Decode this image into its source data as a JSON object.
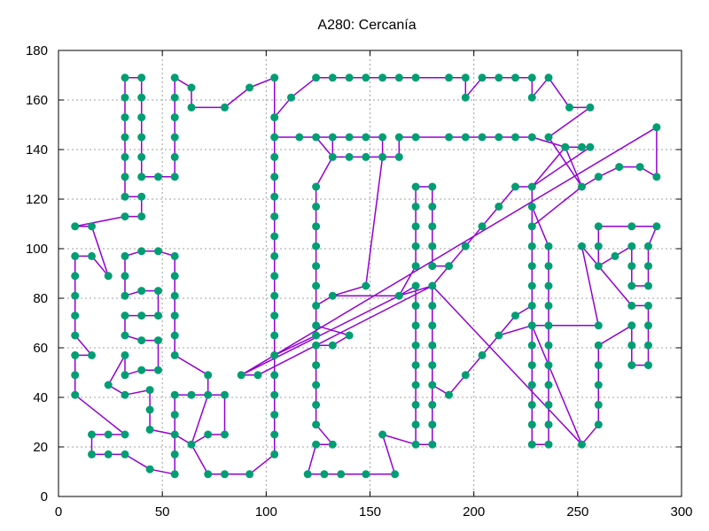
{
  "chart_data": {
    "type": "line",
    "title": "A280: Cercanía",
    "xlabel": "",
    "ylabel": "",
    "xlim": [
      0,
      300
    ],
    "ylim": [
      0,
      180
    ],
    "x_ticks": [
      0,
      50,
      100,
      150,
      200,
      250,
      300
    ],
    "y_ticks": [
      0,
      20,
      40,
      60,
      80,
      100,
      120,
      140,
      160,
      180
    ],
    "grid": true,
    "line_color": "#9400d3",
    "point_color": "#009e73",
    "series": [
      {
        "closed": true,
        "points": [
          [
            88,
            49
          ],
          [
            104,
            57
          ],
          [
            104,
            65
          ],
          [
            104,
            73
          ],
          [
            104,
            81
          ],
          [
            104,
            89
          ],
          [
            104,
            97
          ],
          [
            104,
            105
          ],
          [
            104,
            113
          ],
          [
            104,
            121
          ],
          [
            104,
            129
          ],
          [
            104,
            137
          ],
          [
            104,
            145
          ],
          [
            104,
            153
          ],
          [
            104,
            169
          ],
          [
            92,
            165
          ],
          [
            80,
            157
          ],
          [
            64,
            157
          ],
          [
            64,
            165
          ],
          [
            56,
            169
          ],
          [
            56,
            161
          ],
          [
            56,
            153
          ],
          [
            56,
            145
          ],
          [
            56,
            137
          ],
          [
            56,
            129
          ],
          [
            48,
            129
          ],
          [
            40,
            129
          ],
          [
            40,
            137
          ],
          [
            40,
            145
          ],
          [
            40,
            153
          ],
          [
            40,
            161
          ],
          [
            40,
            169
          ],
          [
            32,
            169
          ],
          [
            32,
            161
          ],
          [
            32,
            153
          ],
          [
            32,
            145
          ],
          [
            32,
            137
          ],
          [
            32,
            129
          ],
          [
            32,
            121
          ],
          [
            40,
            121
          ],
          [
            40,
            113
          ],
          [
            32,
            113
          ],
          [
            8,
            109
          ],
          [
            16,
            109
          ],
          [
            24,
            89
          ],
          [
            16,
            97
          ],
          [
            8,
            97
          ],
          [
            8,
            89
          ],
          [
            8,
            81
          ],
          [
            8,
            73
          ],
          [
            8,
            65
          ],
          [
            16,
            57
          ],
          [
            8,
            57
          ],
          [
            8,
            49
          ],
          [
            8,
            41
          ],
          [
            32,
            25
          ],
          [
            24,
            25
          ],
          [
            16,
            25
          ],
          [
            16,
            17
          ],
          [
            24,
            17
          ],
          [
            32,
            17
          ],
          [
            44,
            11
          ],
          [
            56,
            9
          ],
          [
            56,
            17
          ],
          [
            56,
            25
          ],
          [
            56,
            33
          ],
          [
            56,
            41
          ],
          [
            64,
            41
          ],
          [
            72,
            41
          ],
          [
            72,
            49
          ],
          [
            56,
            57
          ],
          [
            56,
            65
          ],
          [
            56,
            73
          ],
          [
            56,
            81
          ],
          [
            56,
            89
          ],
          [
            56,
            97
          ],
          [
            48,
            99
          ],
          [
            40,
            99
          ],
          [
            32,
            97
          ],
          [
            32,
            89
          ],
          [
            32,
            81
          ],
          [
            40,
            83
          ],
          [
            48,
            83
          ],
          [
            48,
            73
          ],
          [
            40,
            73
          ],
          [
            32,
            73
          ],
          [
            32,
            65
          ],
          [
            40,
            63
          ],
          [
            48,
            63
          ],
          [
            48,
            51
          ],
          [
            40,
            51
          ],
          [
            32,
            49
          ],
          [
            32,
            57
          ],
          [
            24,
            45
          ],
          [
            32,
            41
          ],
          [
            44,
            43
          ],
          [
            44,
            35
          ],
          [
            44,
            27
          ],
          [
            56,
            25
          ],
          [
            64,
            21
          ],
          [
            72,
            25
          ],
          [
            80,
            25
          ],
          [
            80,
            41
          ],
          [
            72,
            41
          ],
          [
            64,
            21
          ],
          [
            72,
            9
          ],
          [
            80,
            9
          ],
          [
            92,
            9
          ],
          [
            104,
            17
          ],
          [
            104,
            25
          ],
          [
            104,
            33
          ],
          [
            104,
            41
          ],
          [
            104,
            49
          ],
          [
            104,
            57
          ],
          [
            124,
            65
          ],
          [
            124,
            69
          ],
          [
            124,
            77
          ],
          [
            124,
            85
          ],
          [
            124,
            93
          ],
          [
            124,
            101
          ],
          [
            124,
            109
          ],
          [
            124,
            117
          ],
          [
            124,
            125
          ],
          [
            132,
            137
          ],
          [
            124,
            145
          ],
          [
            132,
            145
          ],
          [
            140,
            145
          ],
          [
            148,
            145
          ],
          [
            156,
            145
          ],
          [
            156,
            137
          ],
          [
            148,
            85
          ],
          [
            132,
            81
          ],
          [
            164,
            81
          ],
          [
            172,
            85
          ],
          [
            172,
            77
          ],
          [
            172,
            69
          ],
          [
            172,
            61
          ],
          [
            172,
            53
          ],
          [
            172,
            45
          ],
          [
            172,
            37
          ],
          [
            172,
            29
          ],
          [
            172,
            21
          ],
          [
            180,
            21
          ],
          [
            180,
            29
          ],
          [
            180,
            37
          ],
          [
            180,
            45
          ],
          [
            180,
            53
          ],
          [
            180,
            61
          ],
          [
            180,
            69
          ],
          [
            180,
            77
          ],
          [
            180,
            85
          ],
          [
            188,
            93
          ],
          [
            196,
            101
          ],
          [
            204,
            109
          ],
          [
            212,
            117
          ],
          [
            220,
            125
          ],
          [
            228,
            125
          ],
          [
            228,
            117
          ],
          [
            236,
            101
          ],
          [
            236,
            93
          ],
          [
            236,
            85
          ],
          [
            236,
            77
          ],
          [
            236,
            69
          ],
          [
            236,
            61
          ],
          [
            236,
            53
          ],
          [
            236,
            45
          ],
          [
            236,
            37
          ],
          [
            236,
            29
          ],
          [
            236,
            21
          ],
          [
            228,
            21
          ],
          [
            228,
            29
          ],
          [
            228,
            37
          ],
          [
            228,
            45
          ],
          [
            228,
            53
          ],
          [
            228,
            61
          ],
          [
            228,
            69
          ],
          [
            228,
            77
          ],
          [
            228,
            85
          ],
          [
            228,
            93
          ],
          [
            228,
            101
          ],
          [
            228,
            109
          ],
          [
            252,
            125
          ],
          [
            260,
            129
          ],
          [
            270,
            133
          ],
          [
            280,
            133
          ],
          [
            288,
            129
          ],
          [
            288,
            149
          ],
          [
            88,
            49
          ],
          [
            96,
            49
          ],
          [
            180,
            85
          ],
          [
            252,
            21
          ],
          [
            260,
            29
          ],
          [
            260,
            37
          ],
          [
            260,
            45
          ],
          [
            260,
            53
          ],
          [
            260,
            61
          ],
          [
            276,
            69
          ],
          [
            276,
            61
          ],
          [
            276,
            53
          ],
          [
            284,
            53
          ],
          [
            284,
            61
          ],
          [
            284,
            69
          ],
          [
            284,
            77
          ],
          [
            276,
            77
          ],
          [
            260,
            93
          ],
          [
            260,
            101
          ],
          [
            260,
            109
          ],
          [
            276,
            109
          ],
          [
            288,
            109
          ],
          [
            284,
            101
          ],
          [
            284,
            93
          ],
          [
            284,
            85
          ],
          [
            276,
            85
          ],
          [
            276,
            93
          ],
          [
            276,
            101
          ],
          [
            268,
            97
          ],
          [
            260,
            93
          ],
          [
            252,
            101
          ],
          [
            260,
            69
          ],
          [
            236,
            69
          ],
          [
            228,
            69
          ],
          [
            212,
            65
          ],
          [
            220,
            73
          ],
          [
            228,
            77
          ],
          [
            228,
            85
          ],
          [
            228,
            93
          ],
          [
            228,
            101
          ],
          [
            228,
            109
          ],
          [
            228,
            117
          ],
          [
            228,
            125
          ],
          [
            244,
            141
          ],
          [
            252,
            141
          ],
          [
            244,
            141
          ],
          [
            228,
            145
          ],
          [
            220,
            145
          ],
          [
            212,
            145
          ],
          [
            204,
            145
          ],
          [
            196,
            145
          ],
          [
            188,
            145
          ],
          [
            172,
            145
          ],
          [
            164,
            145
          ],
          [
            164,
            137
          ],
          [
            156,
            137
          ],
          [
            148,
            137
          ],
          [
            140,
            137
          ],
          [
            132,
            137
          ],
          [
            132,
            145
          ],
          [
            124,
            145
          ],
          [
            116,
            145
          ],
          [
            104,
            145
          ],
          [
            104,
            153
          ],
          [
            112,
            161
          ],
          [
            124,
            169
          ],
          [
            132,
            169
          ],
          [
            140,
            169
          ],
          [
            148,
            169
          ],
          [
            156,
            169
          ],
          [
            164,
            169
          ],
          [
            172,
            169
          ],
          [
            188,
            169
          ],
          [
            196,
            169
          ],
          [
            196,
            161
          ],
          [
            204,
            169
          ],
          [
            212,
            169
          ],
          [
            220,
            169
          ],
          [
            228,
            169
          ],
          [
            228,
            161
          ],
          [
            236,
            169
          ],
          [
            246,
            157
          ],
          [
            256,
            157
          ],
          [
            236,
            145
          ],
          [
            252,
            125
          ],
          [
            244,
            141
          ],
          [
            256,
            141
          ],
          [
            228,
            125
          ],
          [
            220,
            125
          ],
          [
            212,
            117
          ],
          [
            204,
            109
          ],
          [
            196,
            101
          ],
          [
            188,
            93
          ],
          [
            180,
            93
          ],
          [
            180,
            101
          ],
          [
            180,
            109
          ],
          [
            180,
            117
          ],
          [
            180,
            125
          ],
          [
            172,
            125
          ],
          [
            172,
            117
          ],
          [
            172,
            109
          ],
          [
            172,
            101
          ],
          [
            172,
            93
          ],
          [
            164,
            81
          ],
          [
            132,
            81
          ],
          [
            124,
            77
          ],
          [
            124,
            69
          ],
          [
            140,
            65
          ],
          [
            132,
            61
          ],
          [
            124,
            61
          ],
          [
            124,
            53
          ],
          [
            124,
            45
          ],
          [
            124,
            37
          ],
          [
            124,
            29
          ],
          [
            132,
            21
          ],
          [
            124,
            21
          ],
          [
            120,
            9
          ],
          [
            128,
            9
          ],
          [
            136,
            9
          ],
          [
            148,
            9
          ],
          [
            162,
            9
          ],
          [
            156,
            25
          ],
          [
            172,
            21
          ],
          [
            180,
            21
          ],
          [
            180,
            29
          ],
          [
            180,
            37
          ],
          [
            180,
            45
          ],
          [
            188,
            41
          ],
          [
            196,
            49
          ],
          [
            204,
            57
          ],
          [
            212,
            65
          ],
          [
            228,
            69
          ],
          [
            252,
            21
          ],
          [
            180,
            85
          ],
          [
            164,
            81
          ],
          [
            88,
            49
          ]
        ]
      }
    ]
  }
}
